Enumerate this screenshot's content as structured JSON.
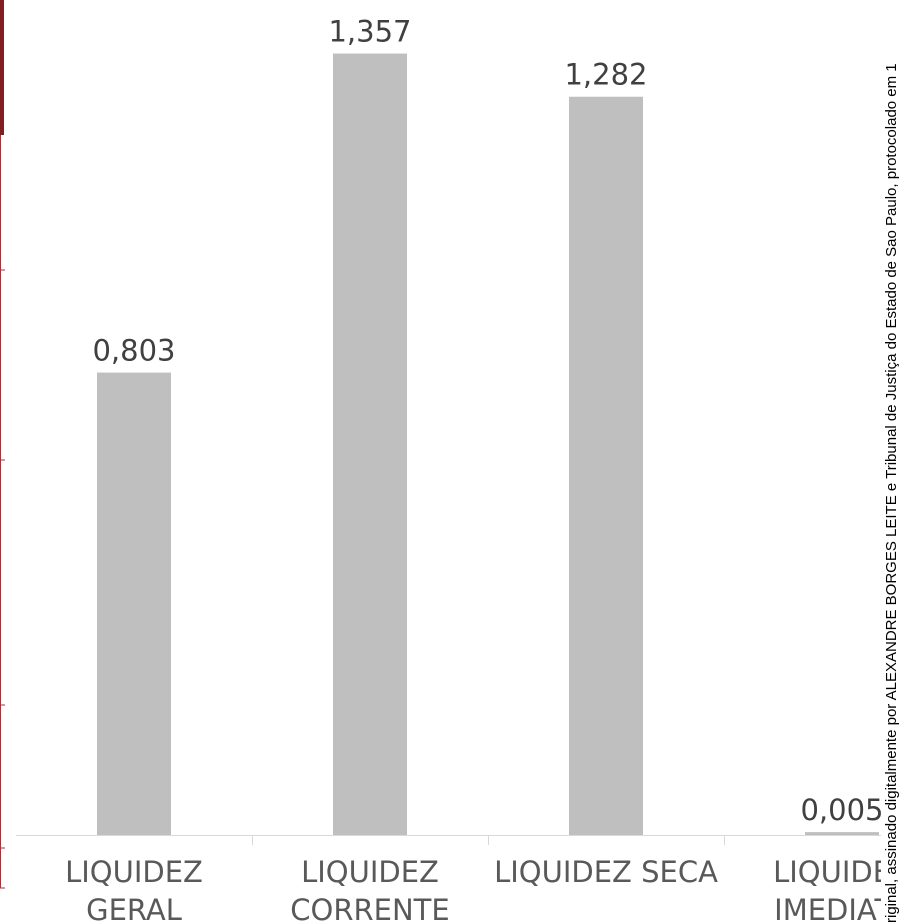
{
  "chart_data": {
    "type": "bar",
    "categories": [
      "LIQUIDEZ GERAL",
      "LIQUIDEZ CORRENTE",
      "LIQUIDEZ SECA",
      "LIQUIDEZ IMEDIATA"
    ],
    "values": [
      0.803,
      1.357,
      1.282,
      0.005
    ],
    "value_labels": [
      "0,803",
      "1,357",
      "1,282",
      "0,005"
    ],
    "color": "#bfbfbf",
    "ylim": [
      0,
      1.45
    ]
  },
  "watermark": "riginal, assinado digitalmente por ALEXANDRE BORGES LEITE e Tribunal de Justiça do Estado de Sao Paulo, protocolado em 1"
}
